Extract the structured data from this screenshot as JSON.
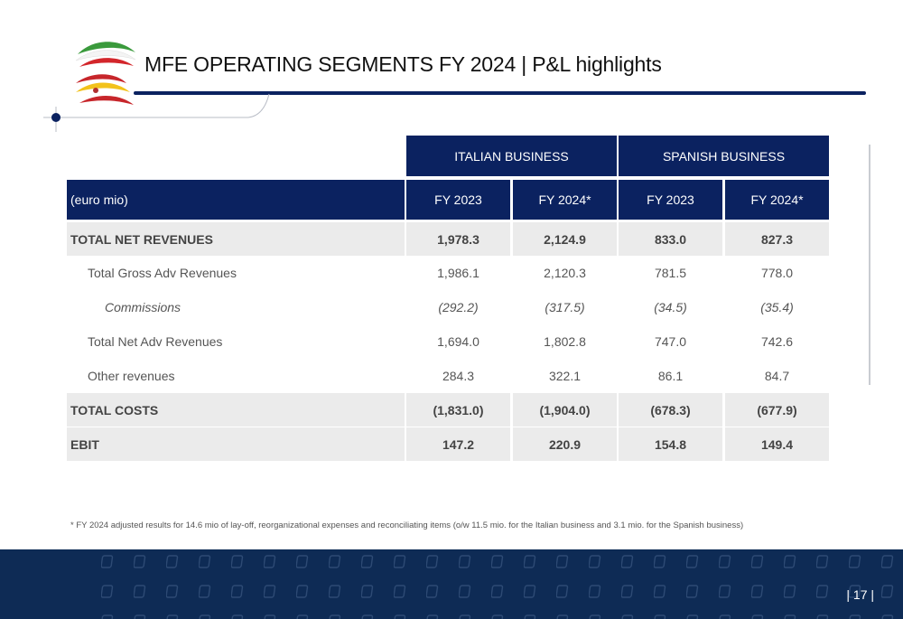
{
  "title": "MFE OPERATING SEGMENTS FY 2024 | P&L highlights",
  "table": {
    "groups": [
      "ITALIAN BUSINESS",
      "SPANISH BUSINESS"
    ],
    "header": {
      "unit": "(euro mio)",
      "columns": [
        "FY 2023",
        "FY 2024*",
        "FY 2023",
        "FY 2024*"
      ]
    },
    "rows": [
      {
        "label": "TOTAL NET REVENUES",
        "values": [
          "1,978.3",
          "2,124.9",
          "833.0",
          "827.3"
        ],
        "style": "bold"
      },
      {
        "label": "Total Gross Adv Revenues",
        "values": [
          "1,986.1",
          "2,120.3",
          "781.5",
          "778.0"
        ],
        "style": "indent"
      },
      {
        "label": "Commissions",
        "values": [
          "(292.2)",
          "(317.5)",
          "(34.5)",
          "(35.4)"
        ],
        "style": "italic"
      },
      {
        "label": "Total Net Adv Revenues",
        "values": [
          "1,694.0",
          "1,802.8",
          "747.0",
          "742.6"
        ],
        "style": "indent"
      },
      {
        "label": "Other revenues",
        "values": [
          "284.3",
          "322.1",
          "86.1",
          "84.7"
        ],
        "style": "indent"
      },
      {
        "label": "TOTAL COSTS",
        "values": [
          "(1,831.0)",
          "(1,904.0)",
          "(678.3)",
          "(677.9)"
        ],
        "style": "bold"
      },
      {
        "label": "EBIT",
        "values": [
          "147.2",
          "220.9",
          "154.8",
          "149.4"
        ],
        "style": "bold"
      }
    ]
  },
  "footnote": "* FY 2024 adjusted results for 14.6 mio of lay-off, reorganizational expenses and reconciliating items (o/w 11.5 mio. for the Italian business and 3.1 mio. for the Spanish business)",
  "page_number": "| 17 |",
  "colors": {
    "navy": "#0b2260",
    "band": "#0e2b55",
    "shade": "#ebebeb"
  }
}
